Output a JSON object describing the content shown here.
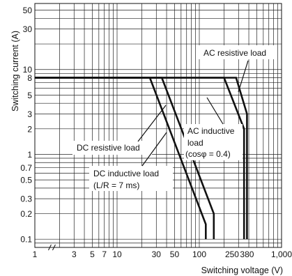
{
  "chart_data": {
    "type": "line",
    "title": "",
    "xlabel": "Switching voltage (V)",
    "ylabel": "Switching current (A)",
    "xscale": "log",
    "yscale": "log",
    "xlim": [
      1,
      1000
    ],
    "ylim": [
      0.08,
      60
    ],
    "grid": true,
    "legend": "none",
    "x_tick_labels": [
      "1",
      "3",
      "5",
      "7",
      "10",
      "30",
      "50",
      "100",
      "250",
      "380",
      "1,000"
    ],
    "y_tick_labels": [
      "50",
      "30",
      "10",
      "8",
      "5",
      "3",
      "2",
      "1",
      "0.7",
      "0.5",
      "0.3",
      "0.2",
      "0.1"
    ],
    "series": [
      {
        "name": "AC resistive load",
        "x": [
          1,
          280,
          380,
          380
        ],
        "y": [
          8,
          8,
          3,
          0.1
        ]
      },
      {
        "name": "AC inductive load (cosφ = 0.4)",
        "x": [
          1,
          200,
          350,
          350
        ],
        "y": [
          8,
          8,
          2,
          0.1
        ]
      },
      {
        "name": "DC resistive load",
        "x": [
          1,
          35,
          150,
          150
        ],
        "y": [
          8,
          8,
          0.2,
          0.1
        ]
      },
      {
        "name": "DC inductive load (L/R = 7 ms)",
        "x": [
          1,
          25,
          120,
          120
        ],
        "y": [
          8,
          8,
          0.15,
          0.1
        ]
      }
    ],
    "annotations": [
      {
        "lines": [
          "AC resistive load"
        ]
      },
      {
        "lines": [
          "AC inductive",
          "load",
          "(cosφ = 0.4)"
        ]
      },
      {
        "lines": [
          "DC resistive load"
        ]
      },
      {
        "lines": [
          "DC inductive load",
          "(L/R = 7 ms)"
        ]
      }
    ]
  }
}
